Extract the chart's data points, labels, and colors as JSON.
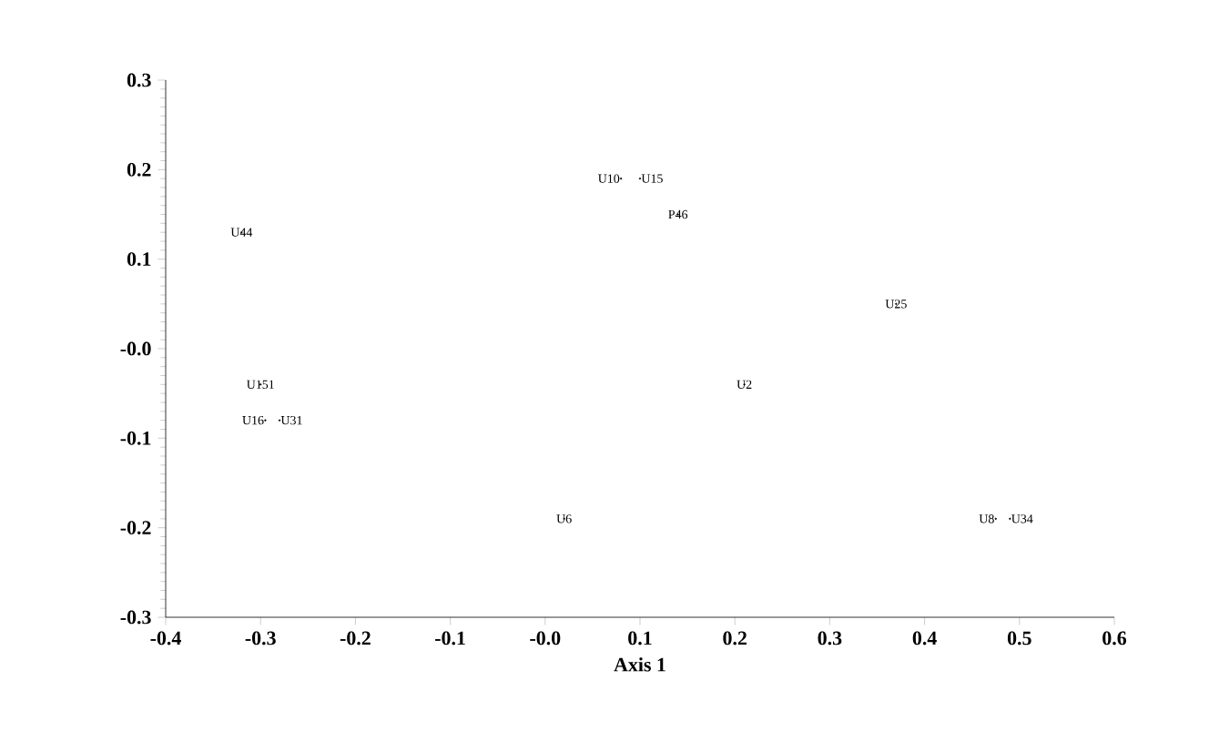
{
  "chart_data": {
    "type": "scatter",
    "xlabel": "Axis 1",
    "xlim": [
      -0.4,
      0.6
    ],
    "ylim": [
      -0.3,
      0.3
    ],
    "xticks": [
      -0.4,
      -0.3,
      -0.2,
      -0.1,
      {
        "value": 0,
        "label": "-0.0"
      },
      0.1,
      0.2,
      0.3,
      0.4,
      0.5,
      0.6
    ],
    "yticks": [
      -0.3,
      -0.2,
      -0.1,
      {
        "value": 0,
        "label": "-0.0"
      },
      0.1,
      0.2,
      0.3
    ],
    "series": [
      {
        "color": "#000000",
        "x": [
          -0.32,
          0.08,
          0.1,
          0.14,
          0.37,
          0.21,
          -0.3,
          -0.295,
          -0.28,
          0.02,
          0.475,
          0.49
        ],
        "values": [
          0.13,
          0.19,
          0.19,
          0.15,
          0.05,
          -0.04,
          -0.04,
          -0.08,
          -0.08,
          -0.19,
          -0.19,
          -0.19
        ],
        "value_labels": [
          "U44",
          "U10",
          "U15",
          "P46",
          "U25",
          "U2",
          "U151",
          "U16",
          "U31",
          "U6",
          "U8",
          "U34"
        ]
      }
    ]
  }
}
